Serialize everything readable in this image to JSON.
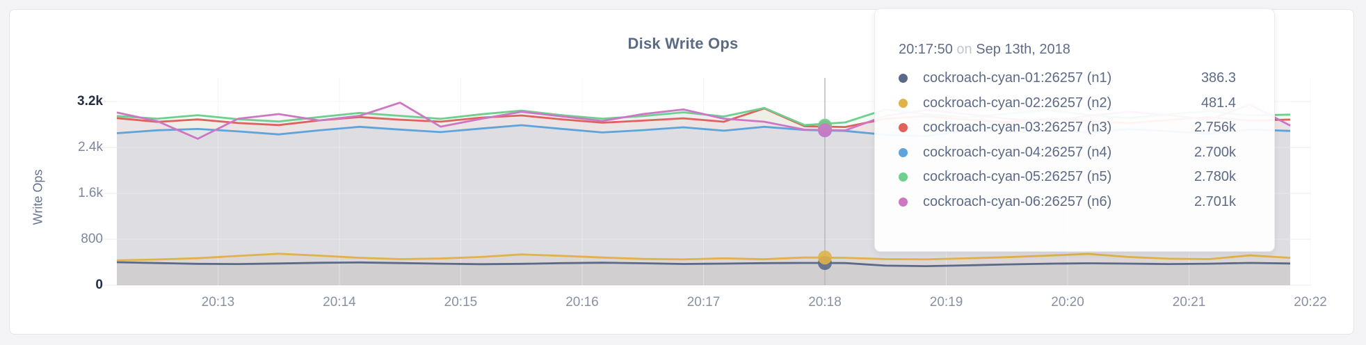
{
  "page": {
    "background": "#f4f4f6"
  },
  "card": {
    "background": "#ffffff",
    "border_color": "#e4e4e6"
  },
  "chart_data": {
    "type": "line",
    "title": "Disk Write Ops",
    "ylabel": "Write Ops",
    "xlabel": "",
    "ylim": [
      0,
      3200
    ],
    "grid": true,
    "legend_position": "tooltip",
    "y_ticks": [
      {
        "label": "3.2k",
        "value": 3200,
        "emphasis": true
      },
      {
        "label": "2.4k",
        "value": 2400,
        "emphasis": false
      },
      {
        "label": "1.6k",
        "value": 1600,
        "emphasis": false
      },
      {
        "label": "800",
        "value": 800,
        "emphasis": false
      },
      {
        "label": "0",
        "value": 0,
        "emphasis": true
      }
    ],
    "x_ticks": [
      {
        "label": "20:13",
        "t": 50
      },
      {
        "label": "20:14",
        "t": 110
      },
      {
        "label": "20:15",
        "t": 170
      },
      {
        "label": "20:16",
        "t": 230
      },
      {
        "label": "20:17",
        "t": 290
      },
      {
        "label": "20:18",
        "t": 350
      },
      {
        "label": "20:19",
        "t": 410
      },
      {
        "label": "20:20",
        "t": 470
      },
      {
        "label": "20:21",
        "t": 530
      },
      {
        "label": "20:22",
        "t": 590
      }
    ],
    "x_domain_seconds": [
      0,
      580
    ],
    "sample_step_seconds": 20,
    "series": [
      {
        "name": "cockroach-cyan-01:26257 (n1)",
        "color": "#5a6987",
        "values": [
          400,
          385,
          372,
          368,
          378,
          390,
          396,
          386,
          374,
          366,
          372,
          384,
          392,
          382,
          370,
          376,
          384,
          388,
          385,
          340,
          332,
          346,
          362,
          374,
          382,
          376,
          368,
          374,
          388,
          378
        ]
      },
      {
        "name": "cockroach-cyan-02:26257 (n2)",
        "color": "#e0b249",
        "values": [
          432,
          448,
          470,
          510,
          548,
          515,
          478,
          455,
          466,
          492,
          536,
          512,
          482,
          458,
          450,
          468,
          452,
          484,
          478,
          455,
          450,
          468,
          488,
          515,
          545,
          492,
          462,
          455,
          520,
          478
        ]
      },
      {
        "name": "cockroach-cyan-03:26257 (n3)",
        "color": "#e0625c",
        "values": [
          2912,
          2846,
          2888,
          2826,
          2790,
          2872,
          2930,
          2884,
          2850,
          2920,
          2958,
          2890,
          2832,
          2868,
          2908,
          2848,
          3080,
          2770,
          2756,
          2900,
          2948,
          2884,
          2842,
          2898,
          2862,
          2822,
          2880,
          2928,
          2868,
          2886
        ]
      },
      {
        "name": "cockroach-cyan-04:26257 (n4)",
        "color": "#5ea4da",
        "values": [
          2648,
          2700,
          2722,
          2680,
          2628,
          2698,
          2760,
          2712,
          2668,
          2730,
          2788,
          2724,
          2662,
          2702,
          2752,
          2692,
          2760,
          2706,
          2688,
          2620,
          2596,
          2700,
          2748,
          2702,
          2660,
          2718,
          2682,
          2640,
          2712,
          2688
        ]
      },
      {
        "name": "cockroach-cyan-05:26257 (n5)",
        "color": "#6fcf8e",
        "values": [
          2948,
          2902,
          2962,
          2892,
          2852,
          2930,
          3002,
          2952,
          2900,
          2978,
          3042,
          2962,
          2902,
          2948,
          3012,
          2940,
          3088,
          2790,
          2836,
          3064,
          2980,
          2922,
          2988,
          3052,
          2968,
          2912,
          2978,
          3032,
          2958,
          2972
        ]
      },
      {
        "name": "cockroach-cyan-06:26257 (n6)",
        "color": "#cc77c4",
        "values": [
          3008,
          2858,
          2552,
          2902,
          2982,
          2872,
          2952,
          3180,
          2762,
          2898,
          3022,
          2942,
          2862,
          2982,
          3062,
          2902,
          2848,
          2710,
          2698,
          2952,
          3052,
          2982,
          2902,
          2852,
          2952,
          3022,
          2962,
          2882,
          3148,
          2782
        ]
      }
    ],
    "hover": {
      "t": 350,
      "time": "20:17:50",
      "conjunction": "on",
      "date": "Sep 13th, 2018",
      "values": [
        386.3,
        481.4,
        2756,
        2700,
        2780,
        2701
      ],
      "values_formatted": [
        "386.3",
        "481.4",
        "2.756k",
        "2.700k",
        "2.780k",
        "2.701k"
      ]
    }
  },
  "tooltip": {
    "time": "20:17:50",
    "conjunction": "on",
    "date": "Sep 13th, 2018",
    "rows": [
      {
        "label": "cockroach-cyan-01:26257 (n1)",
        "value": "386.3",
        "color": "#5a6987"
      },
      {
        "label": "cockroach-cyan-02:26257 (n2)",
        "value": "481.4",
        "color": "#e0b249"
      },
      {
        "label": "cockroach-cyan-03:26257 (n3)",
        "value": "2.756k",
        "color": "#e0625c"
      },
      {
        "label": "cockroach-cyan-04:26257 (n4)",
        "value": "2.700k",
        "color": "#5ea4da"
      },
      {
        "label": "cockroach-cyan-05:26257 (n5)",
        "value": "2.780k",
        "color": "#6fcf8e"
      },
      {
        "label": "cockroach-cyan-06:26257 (n6)",
        "value": "2.701k",
        "color": "#cc77c4"
      }
    ]
  }
}
